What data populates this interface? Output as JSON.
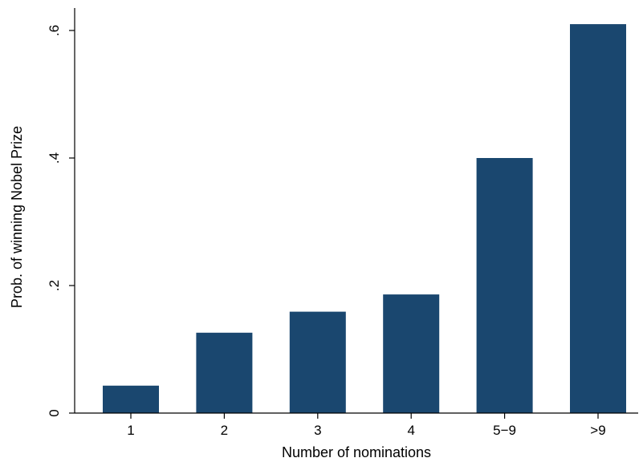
{
  "chart_data": {
    "type": "bar",
    "categories": [
      "1",
      "2",
      "3",
      "4",
      "5−9",
      ">9"
    ],
    "values": [
      0.043,
      0.126,
      0.159,
      0.186,
      0.4,
      0.61
    ],
    "xlabel": "Number of nominations",
    "ylabel": "Prob. of winning Nobel Prize",
    "ylim": [
      0,
      0.6
    ],
    "yticks": [
      0,
      0.2,
      0.4,
      0.6
    ],
    "ytick_labels": [
      "0",
      ".2",
      ".4",
      ".6"
    ],
    "grid": false,
    "bar_color": "#1a476f"
  }
}
